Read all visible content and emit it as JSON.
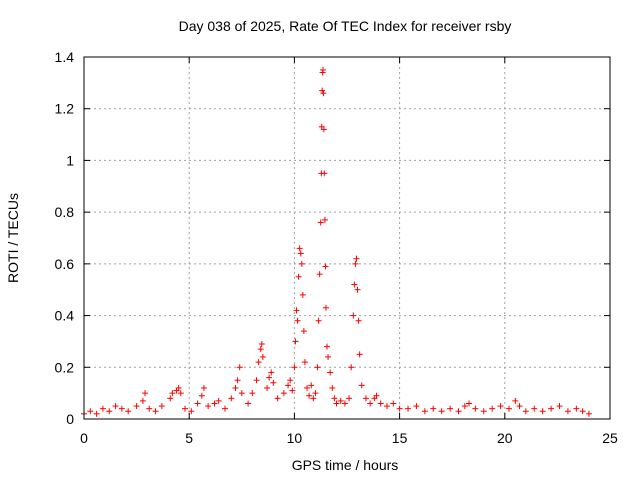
{
  "chart_data": {
    "type": "scatter",
    "title": "Day 038 of 2025, Rate Of TEC Index for receiver rsby",
    "xlabel": "GPS time / hours",
    "ylabel": "ROTI / TECUs",
    "xlim": [
      0,
      25
    ],
    "ylim": [
      0,
      1.4
    ],
    "xticks": [
      "0",
      "5",
      "10",
      "15",
      "20",
      "25"
    ],
    "yticks": [
      "0",
      "0.2",
      "0.4",
      "0.6",
      "0.8",
      "1",
      "1.2",
      "1.4"
    ],
    "grid": true,
    "marker": "+",
    "color": "#ff0000",
    "series": [
      {
        "points": [
          [
            0.0,
            0.02
          ],
          [
            0.3,
            0.03
          ],
          [
            0.6,
            0.02
          ],
          [
            0.9,
            0.04
          ],
          [
            1.2,
            0.03
          ],
          [
            1.5,
            0.05
          ],
          [
            1.8,
            0.04
          ],
          [
            2.1,
            0.03
          ],
          [
            2.5,
            0.05
          ],
          [
            2.8,
            0.07
          ],
          [
            2.9,
            0.1
          ],
          [
            3.1,
            0.04
          ],
          [
            3.4,
            0.03
          ],
          [
            3.7,
            0.05
          ],
          [
            4.1,
            0.08
          ],
          [
            4.2,
            0.1
          ],
          [
            4.4,
            0.11
          ],
          [
            4.5,
            0.12
          ],
          [
            4.6,
            0.1
          ],
          [
            4.8,
            0.04
          ],
          [
            5.1,
            0.03
          ],
          [
            5.4,
            0.06
          ],
          [
            5.6,
            0.09
          ],
          [
            5.7,
            0.12
          ],
          [
            5.9,
            0.05
          ],
          [
            6.2,
            0.06
          ],
          [
            6.4,
            0.07
          ],
          [
            6.7,
            0.04
          ],
          [
            7.0,
            0.08
          ],
          [
            7.2,
            0.12
          ],
          [
            7.3,
            0.15
          ],
          [
            7.4,
            0.2
          ],
          [
            7.5,
            0.1
          ],
          [
            7.8,
            0.06
          ],
          [
            8.0,
            0.1
          ],
          [
            8.2,
            0.15
          ],
          [
            8.3,
            0.22
          ],
          [
            8.4,
            0.27
          ],
          [
            8.45,
            0.29
          ],
          [
            8.5,
            0.24
          ],
          [
            8.7,
            0.12
          ],
          [
            8.8,
            0.16
          ],
          [
            8.9,
            0.18
          ],
          [
            9.0,
            0.14
          ],
          [
            9.2,
            0.08
          ],
          [
            9.5,
            0.1
          ],
          [
            9.7,
            0.13
          ],
          [
            9.8,
            0.15
          ],
          [
            9.9,
            0.11
          ],
          [
            10.0,
            0.2
          ],
          [
            10.05,
            0.3
          ],
          [
            10.1,
            0.42
          ],
          [
            10.15,
            0.38
          ],
          [
            10.2,
            0.55
          ],
          [
            10.25,
            0.66
          ],
          [
            10.3,
            0.64
          ],
          [
            10.35,
            0.6
          ],
          [
            10.4,
            0.48
          ],
          [
            10.45,
            0.34
          ],
          [
            10.5,
            0.22
          ],
          [
            10.6,
            0.12
          ],
          [
            10.7,
            0.09
          ],
          [
            10.8,
            0.13
          ],
          [
            10.9,
            0.08
          ],
          [
            11.0,
            0.1
          ],
          [
            11.1,
            0.2
          ],
          [
            11.15,
            0.38
          ],
          [
            11.2,
            0.56
          ],
          [
            11.25,
            0.76
          ],
          [
            11.28,
            0.95
          ],
          [
            11.3,
            1.13
          ],
          [
            11.32,
            1.27
          ],
          [
            11.34,
            1.34
          ],
          [
            11.36,
            1.35
          ],
          [
            11.38,
            1.26
          ],
          [
            11.4,
            1.12
          ],
          [
            11.42,
            0.95
          ],
          [
            11.45,
            0.77
          ],
          [
            11.48,
            0.59
          ],
          [
            11.5,
            0.43
          ],
          [
            11.55,
            0.28
          ],
          [
            11.6,
            0.24
          ],
          [
            11.7,
            0.18
          ],
          [
            11.8,
            0.12
          ],
          [
            11.9,
            0.08
          ],
          [
            12.0,
            0.06
          ],
          [
            12.2,
            0.07
          ],
          [
            12.4,
            0.06
          ],
          [
            12.6,
            0.08
          ],
          [
            12.7,
            0.2
          ],
          [
            12.8,
            0.4
          ],
          [
            12.85,
            0.52
          ],
          [
            12.9,
            0.6
          ],
          [
            12.95,
            0.62
          ],
          [
            13.0,
            0.5
          ],
          [
            13.05,
            0.38
          ],
          [
            13.1,
            0.25
          ],
          [
            13.2,
            0.13
          ],
          [
            13.4,
            0.08
          ],
          [
            13.6,
            0.06
          ],
          [
            13.8,
            0.08
          ],
          [
            13.9,
            0.09
          ],
          [
            14.1,
            0.06
          ],
          [
            14.4,
            0.05
          ],
          [
            14.7,
            0.06
          ],
          [
            15.0,
            0.04
          ],
          [
            15.4,
            0.04
          ],
          [
            15.8,
            0.05
          ],
          [
            16.2,
            0.03
          ],
          [
            16.6,
            0.04
          ],
          [
            17.0,
            0.03
          ],
          [
            17.4,
            0.04
          ],
          [
            17.8,
            0.03
          ],
          [
            18.1,
            0.05
          ],
          [
            18.3,
            0.06
          ],
          [
            18.6,
            0.04
          ],
          [
            19.0,
            0.03
          ],
          [
            19.4,
            0.04
          ],
          [
            19.8,
            0.05
          ],
          [
            20.2,
            0.04
          ],
          [
            20.5,
            0.07
          ],
          [
            20.7,
            0.05
          ],
          [
            21.0,
            0.03
          ],
          [
            21.4,
            0.04
          ],
          [
            21.8,
            0.03
          ],
          [
            22.2,
            0.04
          ],
          [
            22.6,
            0.05
          ],
          [
            23.0,
            0.03
          ],
          [
            23.4,
            0.04
          ],
          [
            23.7,
            0.03
          ],
          [
            24.0,
            0.02
          ]
        ]
      }
    ]
  }
}
